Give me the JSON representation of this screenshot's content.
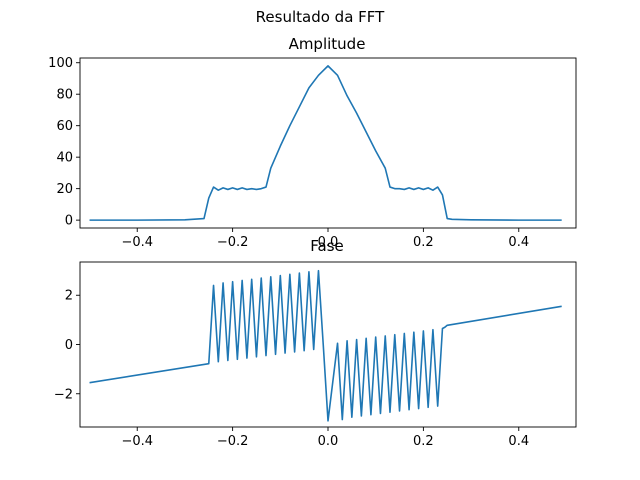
{
  "figure": {
    "suptitle": "Resultado da FFT",
    "line_color": "#1f77b4"
  },
  "chart_data": [
    {
      "type": "line",
      "title": "Amplitude",
      "xlabel": "",
      "ylabel": "",
      "xlim": [
        -0.52,
        0.52
      ],
      "ylim": [
        -5,
        103
      ],
      "xticks": [
        -0.4,
        -0.2,
        0.0,
        0.2,
        0.4
      ],
      "xtick_labels": [
        "−0.4",
        "−0.2",
        "0.0",
        "0.2",
        "0.4"
      ],
      "yticks": [
        0,
        20,
        40,
        60,
        80,
        100
      ],
      "ytick_labels": [
        "0",
        "20",
        "40",
        "60",
        "80",
        "100"
      ],
      "grid": false,
      "series": [
        {
          "x": [
            -0.5,
            -0.4,
            -0.3,
            -0.26,
            -0.25,
            -0.24,
            -0.23,
            -0.22,
            -0.21,
            -0.2,
            -0.19,
            -0.18,
            -0.17,
            -0.16,
            -0.15,
            -0.14,
            -0.13,
            -0.12,
            -0.1,
            -0.08,
            -0.06,
            -0.04,
            -0.02,
            0.0,
            0.02,
            0.04,
            0.06,
            0.08,
            0.1,
            0.12,
            0.13,
            0.14,
            0.15,
            0.16,
            0.17,
            0.18,
            0.19,
            0.2,
            0.21,
            0.22,
            0.23,
            0.24,
            0.25,
            0.26,
            0.3,
            0.4,
            0.49
          ],
          "y": [
            0,
            0,
            0.2,
            1,
            14,
            21,
            19,
            20.5,
            19.5,
            20.5,
            19.5,
            20.5,
            19.5,
            20,
            19.5,
            20,
            21,
            33,
            47,
            60,
            72,
            84,
            92,
            98,
            92,
            79,
            68,
            56,
            44,
            33,
            21,
            20,
            20,
            19.5,
            20.5,
            19.5,
            20.5,
            19.5,
            20.5,
            19,
            21,
            16,
            1,
            0.5,
            0.2,
            0,
            0
          ]
        }
      ]
    },
    {
      "type": "line",
      "title": "Fase",
      "xlabel": "",
      "ylabel": "",
      "xlim": [
        -0.52,
        0.52
      ],
      "ylim": [
        -3.35,
        3.35
      ],
      "xticks": [
        -0.4,
        -0.2,
        0.0,
        0.2,
        0.4
      ],
      "xtick_labels": [
        "−0.4",
        "−0.2",
        "0.0",
        "0.2",
        "0.4"
      ],
      "yticks": [
        -2,
        0,
        2
      ],
      "ytick_labels": [
        "−2",
        "0",
        "2"
      ],
      "grid": false,
      "series": [
        {
          "x": [
            -0.5,
            -0.25,
            -0.245,
            -0.24,
            -0.23,
            -0.22,
            -0.21,
            -0.2,
            -0.19,
            -0.18,
            -0.17,
            -0.16,
            -0.15,
            -0.14,
            -0.13,
            -0.12,
            -0.11,
            -0.1,
            -0.09,
            -0.08,
            -0.07,
            -0.06,
            -0.05,
            -0.04,
            -0.03,
            -0.02,
            -0.01,
            0.0,
            0.02,
            0.03,
            0.04,
            0.05,
            0.06,
            0.07,
            0.08,
            0.09,
            0.1,
            0.11,
            0.12,
            0.13,
            0.14,
            0.15,
            0.16,
            0.17,
            0.18,
            0.19,
            0.2,
            0.21,
            0.22,
            0.23,
            0.24,
            0.245,
            0.25,
            0.49
          ],
          "y": [
            -1.55,
            -0.78,
            0.8,
            2.4,
            -0.7,
            2.5,
            -0.65,
            2.55,
            -0.6,
            2.6,
            -0.55,
            2.65,
            -0.5,
            2.7,
            -0.45,
            2.75,
            -0.4,
            2.8,
            -0.35,
            2.85,
            -0.3,
            2.9,
            -0.25,
            2.95,
            -0.2,
            3.0,
            0.0,
            -3.1,
            0.05,
            -3.05,
            0.15,
            -2.95,
            0.2,
            -2.9,
            0.25,
            -2.85,
            0.3,
            -2.8,
            0.35,
            -2.75,
            0.4,
            -2.7,
            0.45,
            -2.65,
            0.5,
            -2.6,
            0.55,
            -2.55,
            0.6,
            -2.5,
            0.65,
            0.7,
            0.78,
            1.55
          ]
        }
      ]
    }
  ]
}
